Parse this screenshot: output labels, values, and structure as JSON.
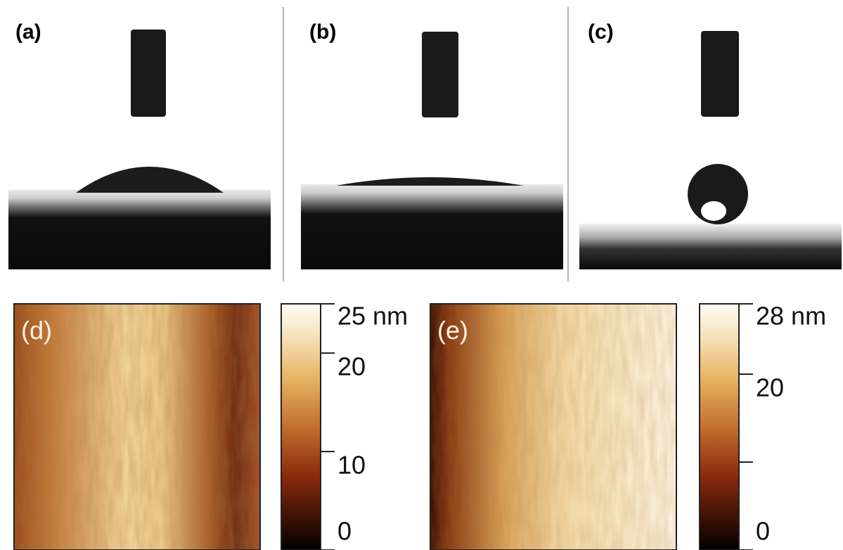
{
  "panels": [
    {
      "label": "(a)"
    },
    {
      "label": "(b)"
    },
    {
      "label": "(c)"
    },
    {
      "label": "(d)"
    },
    {
      "label": "(e)"
    }
  ],
  "colorbars": [
    {
      "range": [
        0,
        25
      ],
      "ticks": [
        {
          "value": 25,
          "label": "25 nm"
        },
        20,
        10,
        0
      ]
    },
    {
      "range": [
        0,
        28
      ],
      "ticks": [
        {
          "value": 28,
          "label": "28 nm"
        },
        20,
        {
          "value": 10,
          "label": null
        },
        0
      ]
    }
  ]
}
